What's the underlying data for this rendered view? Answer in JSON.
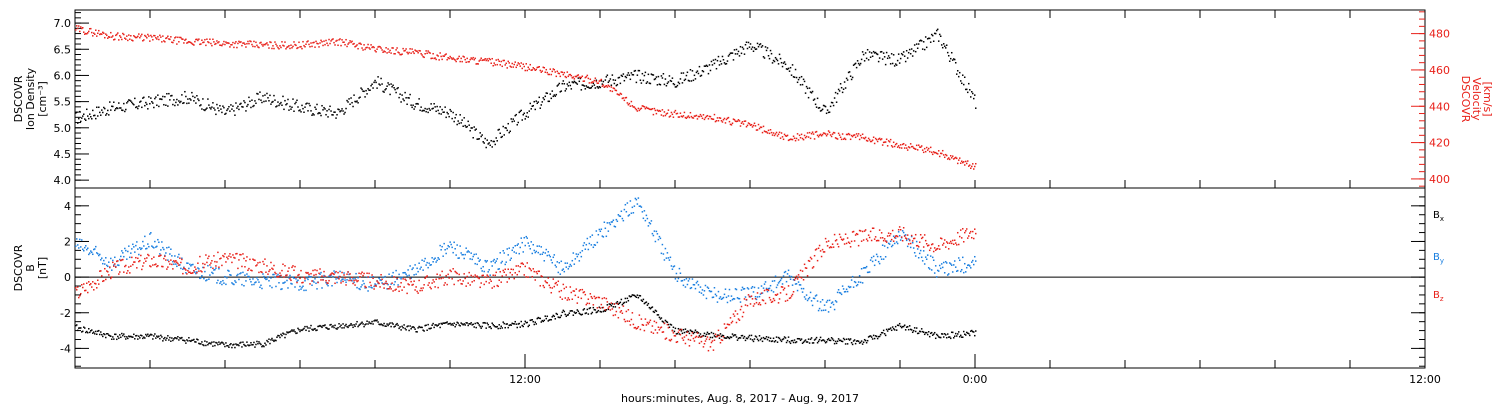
{
  "colors": {
    "axis": "#000000",
    "density": "#000000",
    "velocity": "#e8211a",
    "bx": "#000000",
    "by": "#1a7fe0",
    "bz": "#e8211a"
  },
  "chart_data": [
    {
      "type": "scatter",
      "ylabel_lines": [
        "DSCOVR",
        "Ion Density",
        "[cm^-3]"
      ],
      "ylim": [
        3.85,
        7.25
      ],
      "yticks": [
        "4.0",
        "4.5",
        "5.0",
        "5.5",
        "6.0",
        "6.5",
        "7.0"
      ],
      "right_axis": {
        "label_lines": [
          "DSCOVR",
          "Velocity",
          "[km/s]"
        ],
        "ylim": [
          395,
          493
        ],
        "yticks": [
          "400",
          "420",
          "440",
          "460",
          "480"
        ]
      },
      "x_hours_range": [
        0,
        36
      ],
      "series": [
        {
          "name": "Ion Density",
          "axis": "left",
          "color_key": "density",
          "x": [
            0,
            1,
            2,
            3,
            4,
            5,
            6,
            7,
            8,
            9,
            10,
            11,
            12,
            13,
            14,
            15,
            16,
            17,
            18,
            19,
            20,
            21,
            22,
            23,
            24
          ],
          "y": [
            5.2,
            5.4,
            5.5,
            5.6,
            5.3,
            5.6,
            5.4,
            5.3,
            5.9,
            5.5,
            5.3,
            4.7,
            5.3,
            5.8,
            5.9,
            6.0,
            5.9,
            6.2,
            6.6,
            6.2,
            5.3,
            6.4,
            6.3,
            6.8,
            5.5
          ]
        },
        {
          "name": "Velocity",
          "axis": "right",
          "color_key": "velocity",
          "x": [
            0,
            1,
            2,
            3,
            4,
            5,
            6,
            7,
            8,
            9,
            10,
            11,
            12,
            13,
            14,
            15,
            16,
            17,
            18,
            19,
            20,
            21,
            22,
            23,
            24
          ],
          "y": [
            483,
            479,
            478,
            476,
            475,
            474,
            474,
            476,
            472,
            470,
            467,
            465,
            462,
            458,
            454,
            439,
            436,
            434,
            430,
            423,
            425,
            423,
            419,
            415,
            407
          ]
        }
      ]
    },
    {
      "type": "scatter",
      "ylabel_lines": [
        "DSCOVR",
        "B",
        "[nT]"
      ],
      "ylim": [
        -5.1,
        5.0
      ],
      "yticks": [
        "-4",
        "-2",
        "0",
        "2",
        "4"
      ],
      "legend": [
        "Bx",
        "By",
        "Bz"
      ],
      "legend_placement": "right",
      "xtick_labels": [
        "12:00",
        "0:00",
        "12:00"
      ],
      "xtick_hours": [
        12,
        24,
        36
      ],
      "xlabel": "hours:minutes, Aug.  8, 2017 - Aug.  9, 2017",
      "series": [
        {
          "name": "Bx",
          "color_key": "bx",
          "x": [
            0,
            1,
            2,
            3,
            4,
            5,
            6,
            7,
            8,
            9,
            10,
            11,
            12,
            13,
            14,
            15,
            16,
            17,
            18,
            19,
            20,
            21,
            22,
            23,
            24
          ],
          "y": [
            -2.8,
            -3.3,
            -3.3,
            -3.5,
            -3.8,
            -3.7,
            -2.9,
            -2.7,
            -2.5,
            -2.9,
            -2.6,
            -2.7,
            -2.6,
            -2.0,
            -1.8,
            -1.0,
            -3.0,
            -3.2,
            -3.4,
            -3.5,
            -3.5,
            -3.6,
            -2.7,
            -3.3,
            -3.1
          ]
        },
        {
          "name": "By",
          "color_key": "by",
          "x": [
            0,
            1,
            2,
            3,
            4,
            5,
            6,
            7,
            8,
            9,
            10,
            11,
            12,
            13,
            14,
            15,
            16,
            17,
            18,
            19,
            20,
            21,
            22,
            23,
            24
          ],
          "y": [
            1.9,
            0.8,
            2.1,
            0.5,
            0.0,
            -0.2,
            -0.3,
            0.0,
            -0.4,
            0.3,
            1.8,
            0.5,
            2.0,
            0.5,
            2.5,
            4.3,
            0.2,
            -1.0,
            -0.9,
            0.0,
            -1.8,
            0.2,
            2.5,
            0.4,
            0.9
          ]
        },
        {
          "name": "Bz",
          "color_key": "bz",
          "x": [
            0,
            1,
            2,
            3,
            4,
            5,
            6,
            7,
            8,
            9,
            10,
            11,
            12,
            13,
            14,
            15,
            16,
            17,
            18,
            19,
            20,
            21,
            22,
            23,
            24
          ],
          "y": [
            -0.9,
            0.5,
            1.0,
            0.6,
            1.1,
            0.7,
            0.1,
            0.1,
            -0.2,
            -0.5,
            0.1,
            -0.3,
            0.5,
            -0.8,
            -1.3,
            -2.5,
            -3.2,
            -3.7,
            -1.2,
            -0.9,
            1.9,
            2.3,
            2.5,
            1.8,
            2.7
          ]
        }
      ]
    }
  ]
}
